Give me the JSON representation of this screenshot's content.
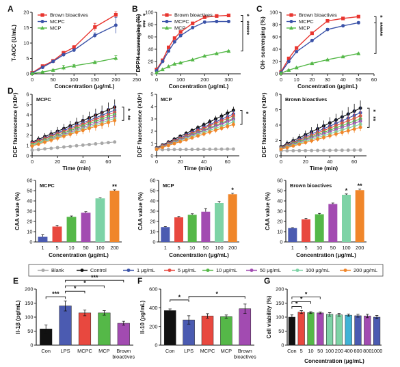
{
  "colors": {
    "red": "#e8352f",
    "blue": "#3a52a8",
    "green": "#55b848",
    "gray": "#a8a8a8",
    "black": "#111111",
    "purple": "#a24bb1",
    "mint": "#7ed3a6",
    "orange": "#f0862a",
    "pink": "#e8483f",
    "cyan": "#3fb2d6",
    "navy": "#4b5bb1"
  },
  "legend_top": [
    {
      "label": "Brown bioactives",
      "color": "red"
    },
    {
      "label": "MCPC",
      "color": "blue"
    },
    {
      "label": "MCP",
      "color": "green"
    }
  ],
  "legend_dcf": [
    {
      "label": "Blank",
      "color": "gray"
    },
    {
      "label": "Control",
      "color": "black"
    },
    {
      "label": "1 μg/mL",
      "color": "blue"
    },
    {
      "label": "5 μg/mL",
      "color": "pink"
    },
    {
      "label": "10 μg/mL",
      "color": "green"
    },
    {
      "label": "50 μg/mL",
      "color": "purple"
    },
    {
      "label": "100 μg/mL",
      "color": "mint"
    },
    {
      "label": "200 μg/mL",
      "color": "orange"
    }
  ],
  "panel_a": {
    "letter": "A",
    "chart_data": {
      "type": "line",
      "xlabel": "Concentration (μg/mL)",
      "ylabel": "T-AOC (U/mL)",
      "xlim": [
        0,
        250
      ],
      "ylim": [
        0,
        20
      ],
      "xticks": [
        0,
        50,
        100,
        150,
        200,
        250
      ],
      "yticks": [
        0,
        5,
        10,
        15,
        20
      ],
      "significance": [
        "*",
        "***"
      ],
      "series": [
        {
          "name": "Brown bioactives",
          "color": "red",
          "x": [
            0,
            25,
            50,
            75,
            100,
            150,
            200
          ],
          "y": [
            0.3,
            2.5,
            4.2,
            6.8,
            8.6,
            15.2,
            19.2
          ],
          "err": [
            0.3,
            0.3,
            0.4,
            0.5,
            0.6,
            1.2,
            1.0
          ]
        },
        {
          "name": "MCPC",
          "color": "blue",
          "x": [
            0,
            25,
            50,
            75,
            100,
            150,
            200
          ],
          "y": [
            0.2,
            2.1,
            4.0,
            6.2,
            7.7,
            12.5,
            15.8
          ],
          "err": [
            0.2,
            0.3,
            0.4,
            0.4,
            0.5,
            0.8,
            2.6
          ]
        },
        {
          "name": "MCP",
          "color": "green",
          "x": [
            0,
            25,
            50,
            75,
            100,
            150,
            200
          ],
          "y": [
            0.1,
            0.6,
            1.2,
            2.0,
            2.6,
            3.7,
            5.1
          ],
          "err": [
            0.1,
            0.2,
            0.3,
            0.8,
            0.4,
            0.5,
            0.8
          ]
        }
      ]
    }
  },
  "panel_b": {
    "letter": "B",
    "chart_data": {
      "type": "line",
      "xlabel": "Concentration (μg/mL)",
      "ylabel": "DPPH scavenging (%)",
      "xlim": [
        0,
        350
      ],
      "ylim": [
        0,
        100
      ],
      "xticks": [
        0,
        100,
        200,
        300
      ],
      "yticks": [
        0,
        20,
        40,
        60,
        80,
        100
      ],
      "significance": [
        "*",
        "***",
        "***"
      ],
      "series": [
        {
          "name": "Brown bioactives",
          "color": "red",
          "x": [
            0,
            25,
            50,
            75,
            100,
            150,
            200,
            250,
            300
          ],
          "y": [
            7,
            22,
            43,
            58,
            68,
            82,
            92,
            94,
            95
          ],
          "err": [
            1,
            1.5,
            2,
            2,
            2,
            2,
            1.5,
            1,
            1
          ]
        },
        {
          "name": "MCPC",
          "color": "blue",
          "x": [
            0,
            25,
            50,
            75,
            100,
            150,
            200,
            250,
            300
          ],
          "y": [
            5,
            20,
            37,
            52,
            62,
            75,
            84,
            85,
            85
          ],
          "err": [
            1,
            1.5,
            2,
            2,
            2,
            2,
            2,
            2,
            2
          ]
        },
        {
          "name": "MCP",
          "color": "green",
          "x": [
            0,
            25,
            50,
            75,
            100,
            150,
            200,
            250,
            300
          ],
          "y": [
            2,
            7,
            12,
            16,
            18,
            23,
            29,
            33,
            37
          ],
          "err": [
            0.5,
            1,
            1,
            1,
            1,
            1,
            1,
            1,
            1
          ]
        }
      ]
    }
  },
  "panel_c": {
    "letter": "C",
    "chart_data": {
      "type": "line",
      "xlabel": "Concentration (μg/mL)",
      "ylabel": "OH· scavenging (%)",
      "xlim": [
        0,
        60
      ],
      "ylim": [
        0,
        100
      ],
      "xticks": [
        0,
        10,
        20,
        30,
        40,
        50,
        60
      ],
      "yticks": [
        0,
        20,
        40,
        60,
        80,
        100
      ],
      "significance": [
        "*",
        "***",
        "***"
      ],
      "series": [
        {
          "name": "Brown bioactives",
          "color": "red",
          "x": [
            0,
            5,
            10,
            20,
            30,
            40,
            50
          ],
          "y": [
            3,
            25,
            42,
            66,
            86,
            90,
            93
          ],
          "err": [
            1,
            1.5,
            2,
            2,
            1.5,
            1.5,
            1.5
          ]
        },
        {
          "name": "MCPC",
          "color": "blue",
          "x": [
            0,
            5,
            10,
            20,
            30,
            40,
            50
          ],
          "y": [
            2,
            20,
            36,
            54,
            72,
            78,
            83
          ],
          "err": [
            1,
            1.5,
            2,
            2,
            2,
            2,
            2
          ]
        },
        {
          "name": "MCP",
          "color": "green",
          "x": [
            0,
            5,
            10,
            20,
            30,
            40,
            50
          ],
          "y": [
            1,
            6,
            10,
            17,
            23,
            28,
            33
          ],
          "err": [
            0.5,
            1,
            1,
            1,
            1,
            1,
            1
          ]
        }
      ]
    }
  },
  "panel_d": {
    "letter": "D",
    "charts": [
      {
        "chart_data": {
          "type": "line",
          "title": "MCPC",
          "xlabel": "Time (min)",
          "ylabel": "DCF fluorescence (×10⁶)",
          "xlim": [
            0,
            70
          ],
          "ylim": [
            0,
            6
          ],
          "xticks": [
            0,
            20,
            40,
            60
          ],
          "yticks": [
            0,
            1,
            2,
            3,
            4,
            5,
            6
          ],
          "x": [
            0,
            5,
            10,
            15,
            20,
            25,
            30,
            35,
            40,
            45,
            50,
            55,
            60,
            65
          ],
          "start": [
            0.55,
            1.35,
            1.25,
            1.2,
            1.1,
            1.0,
            1.0,
            0.95
          ],
          "end": [
            1.35,
            4.75,
            4.45,
            4.25,
            4.05,
            3.85,
            3.65,
            3.45
          ],
          "err_end": [
            0.1,
            0.75,
            0.6,
            0.6,
            0.5,
            0.5,
            0.5,
            0.5
          ],
          "significance": [
            "*",
            "**"
          ]
        }
      },
      {
        "chart_data": {
          "type": "line",
          "title": "MCP",
          "xlabel": "Time (min)",
          "ylabel": "DCF fluorescence (×10⁶)",
          "xlim": [
            0,
            70
          ],
          "ylim": [
            0,
            5
          ],
          "xticks": [
            0,
            20,
            40,
            60
          ],
          "yticks": [
            0,
            1,
            2,
            3,
            4,
            5
          ],
          "x": [
            0,
            5,
            10,
            15,
            20,
            25,
            30,
            35,
            40,
            45,
            50,
            55,
            60,
            65
          ],
          "start": [
            0.5,
            0.65,
            0.62,
            0.6,
            0.58,
            0.57,
            0.55,
            0.53
          ],
          "end": [
            0.55,
            3.7,
            3.4,
            3.25,
            3.05,
            2.95,
            2.75,
            2.55
          ],
          "err_end": [
            0.05,
            0.3,
            0.3,
            0.3,
            0.25,
            0.25,
            0.25,
            0.25
          ],
          "significance": [
            "*"
          ]
        }
      },
      {
        "chart_data": {
          "type": "line",
          "title": "Brown bioactives",
          "xlabel": "Time (min)",
          "ylabel": "DCF fluorescence (×10⁶)",
          "xlim": [
            0,
            70
          ],
          "ylim": [
            0,
            8
          ],
          "xticks": [
            0,
            20,
            40,
            60
          ],
          "yticks": [
            0,
            2,
            4,
            6,
            8
          ],
          "x": [
            0,
            5,
            10,
            15,
            20,
            25,
            30,
            35,
            40,
            45,
            50,
            55,
            60,
            65
          ],
          "start": [
            0.65,
            1.2,
            1.1,
            1.05,
            1.0,
            0.95,
            0.9,
            0.85
          ],
          "end": [
            0.75,
            6.2,
            5.6,
            5.2,
            4.8,
            4.5,
            4.1,
            3.7
          ],
          "err_end": [
            0.05,
            1.0,
            0.8,
            0.7,
            0.6,
            0.6,
            0.5,
            0.5
          ],
          "significance": [
            "*",
            "**"
          ]
        }
      }
    ]
  },
  "panel_caa": {
    "charts": [
      {
        "chart_data": {
          "type": "bar",
          "title": "MCPC",
          "xlabel": "Concentration (μg/mL)",
          "ylabel": "CAA value (%)",
          "categories": [
            "1",
            "5",
            "10",
            "50",
            "100",
            "200"
          ],
          "values": [
            5,
            15,
            24.5,
            28.5,
            42.5,
            50
          ],
          "err": [
            2,
            1.2,
            0.8,
            1,
            0.5,
            0.8
          ],
          "ylim": [
            0,
            60
          ],
          "yticks": [
            0,
            10,
            20,
            30,
            40,
            50,
            60
          ],
          "significance": [
            "",
            "",
            "",
            "",
            "",
            "**"
          ]
        }
      },
      {
        "chart_data": {
          "type": "bar",
          "title": "MCP",
          "xlabel": "Concentration (μg/mL)",
          "ylabel": "CAA value (%)",
          "categories": [
            "1",
            "5",
            "10",
            "50",
            "100",
            "200"
          ],
          "values": [
            14.5,
            24,
            26.5,
            29.5,
            38,
            46.5
          ],
          "err": [
            0.5,
            0.8,
            1,
            3,
            1.5,
            1
          ],
          "ylim": [
            0,
            60
          ],
          "yticks": [
            0,
            10,
            20,
            30,
            40,
            50,
            60
          ],
          "significance": [
            "",
            "",
            "",
            "",
            "",
            "*"
          ]
        }
      },
      {
        "chart_data": {
          "type": "bar",
          "title": "Brown bioactives",
          "xlabel": "Concentration (μg/mL)",
          "ylabel": "CAA value (%)",
          "categories": [
            "1",
            "5",
            "10",
            "50",
            "100",
            "200"
          ],
          "values": [
            13.5,
            22,
            27,
            37,
            46,
            50.5
          ],
          "err": [
            0.5,
            1,
            0.8,
            1,
            0.8,
            1
          ],
          "ylim": [
            0,
            60
          ],
          "yticks": [
            0,
            10,
            20,
            30,
            40,
            50,
            60
          ],
          "significance": [
            "",
            "",
            "",
            "",
            "*",
            "**"
          ]
        }
      }
    ]
  },
  "panel_e": {
    "letter": "E",
    "chart_data": {
      "type": "bar",
      "ylabel": "Il-1β (pg/mL)",
      "categories": [
        "Con",
        "LPS",
        "MCPC",
        "MCP",
        "Brown\nbioactives"
      ],
      "values": [
        58,
        140,
        115,
        115,
        78
      ],
      "err": [
        14,
        18,
        10,
        8,
        7
      ],
      "ylim": [
        0,
        200
      ],
      "yticks": [
        0,
        50,
        100,
        150,
        200
      ],
      "bar_colors": [
        "black",
        "navy",
        "pink",
        "green",
        "purple"
      ],
      "brackets": [
        {
          "from": 0,
          "to": 1,
          "label": "***"
        },
        {
          "from": 1,
          "to": 2,
          "label": "*"
        },
        {
          "from": 1,
          "to": 3,
          "label": "*"
        },
        {
          "from": 1,
          "to": 4,
          "label": "***"
        }
      ]
    }
  },
  "panel_f": {
    "letter": "F",
    "chart_data": {
      "type": "bar",
      "ylabel": "Il-10 (pg/mL)",
      "categories": [
        "Con",
        "LPS",
        "MCPC",
        "MCP",
        "Brown\nbioactives"
      ],
      "values": [
        370,
        270,
        312,
        305,
        390
      ],
      "err": [
        18,
        45,
        25,
        18,
        50
      ],
      "ylim": [
        0,
        600
      ],
      "yticks": [
        0,
        200,
        400,
        600
      ],
      "bar_colors": [
        "black",
        "navy",
        "pink",
        "green",
        "purple"
      ],
      "brackets": [
        {
          "from": 0,
          "to": 1,
          "label": "*"
        },
        {
          "from": 1,
          "to": 4,
          "label": "*"
        }
      ]
    }
  },
  "panel_g": {
    "letter": "G",
    "chart_data": {
      "type": "bar",
      "ylabel": "Cell viability (%)",
      "xlabel": "Concentration (μg/mL)",
      "categories": [
        "Con",
        "5",
        "10",
        "50",
        "100",
        "200",
        "400",
        "600",
        "800",
        "1000"
      ],
      "values": [
        100,
        118,
        116,
        115,
        110,
        108,
        107,
        105,
        104,
        100
      ],
      "err": [
        8,
        5,
        3,
        3,
        6,
        5,
        4,
        5,
        6,
        6
      ],
      "ylim": [
        0,
        200
      ],
      "yticks": [
        0,
        50,
        100,
        150,
        200
      ],
      "bar_colors": [
        "black",
        "pink",
        "green",
        "purple",
        "mint",
        "mint",
        "cyan",
        "navy",
        "purple",
        "navy"
      ],
      "brackets": [
        {
          "from": 0,
          "to": 1,
          "label": "*"
        },
        {
          "from": 0,
          "to": 2,
          "label": "*"
        },
        {
          "from": 0,
          "to": 3,
          "label": "*"
        }
      ]
    }
  }
}
